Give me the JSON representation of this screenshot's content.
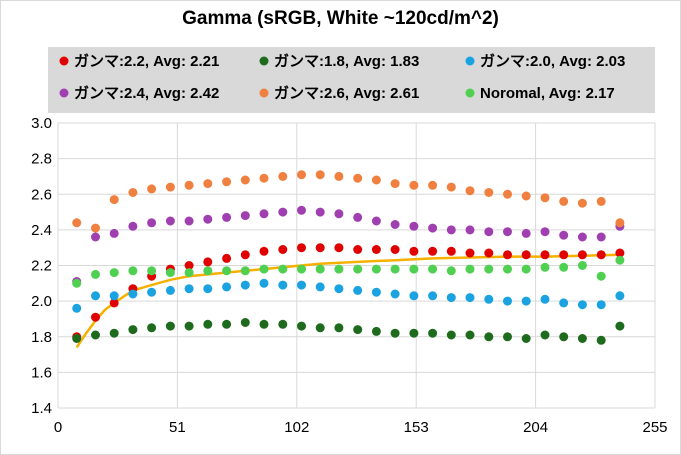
{
  "chart_data": {
    "type": "scatter",
    "title": "Gamma (sRGB, White ~120cd/m^2)",
    "xlabel": "",
    "ylabel": "",
    "xlim": [
      0,
      255
    ],
    "ylim": [
      1.4,
      3.0
    ],
    "x_ticks": [
      "0",
      "51",
      "102",
      "153",
      "204",
      "255"
    ],
    "y_ticks": [
      "1.4",
      "1.6",
      "1.8",
      "2.0",
      "2.2",
      "2.4",
      "2.6",
      "2.8",
      "3.0"
    ],
    "grid": true,
    "legend_placement": "top",
    "x": [
      8,
      16,
      24,
      32,
      40,
      48,
      56,
      64,
      72,
      80,
      88,
      96,
      104,
      112,
      120,
      128,
      136,
      144,
      152,
      160,
      168,
      176,
      184,
      192,
      200,
      208,
      216,
      224,
      232,
      240
    ],
    "series": [
      {
        "name": "ガンマ:2.2, Avg: 2.21",
        "color": "#e00000",
        "marker": "dot",
        "values": [
          1.8,
          1.91,
          1.99,
          2.07,
          2.14,
          2.18,
          2.2,
          2.22,
          2.24,
          2.26,
          2.28,
          2.29,
          2.3,
          2.3,
          2.3,
          2.29,
          2.29,
          2.29,
          2.28,
          2.28,
          2.28,
          2.27,
          2.27,
          2.26,
          2.26,
          2.26,
          2.26,
          2.26,
          2.26,
          2.27
        ]
      },
      {
        "name": "ガンマ:1.8, Avg: 1.83",
        "color": "#1e6b1e",
        "marker": "dot",
        "values": [
          1.79,
          1.81,
          1.82,
          1.84,
          1.85,
          1.86,
          1.86,
          1.87,
          1.87,
          1.88,
          1.87,
          1.87,
          1.86,
          1.85,
          1.85,
          1.84,
          1.83,
          1.82,
          1.82,
          1.82,
          1.81,
          1.81,
          1.8,
          1.8,
          1.79,
          1.81,
          1.8,
          1.79,
          1.78,
          1.86
        ]
      },
      {
        "name": "ガンマ:2.0, Avg: 2.03",
        "color": "#1aa3e0",
        "marker": "dot",
        "values": [
          1.96,
          2.03,
          2.03,
          2.04,
          2.05,
          2.06,
          2.07,
          2.07,
          2.08,
          2.09,
          2.1,
          2.09,
          2.09,
          2.08,
          2.07,
          2.06,
          2.05,
          2.04,
          2.03,
          2.03,
          2.02,
          2.02,
          2.01,
          2.0,
          2.0,
          2.01,
          1.99,
          1.98,
          1.98,
          2.03
        ]
      },
      {
        "name": "ガンマ:2.4, Avg: 2.42",
        "color": "#a040b0",
        "marker": "dot",
        "values": [
          2.11,
          2.36,
          2.38,
          2.42,
          2.44,
          2.45,
          2.45,
          2.46,
          2.47,
          2.48,
          2.49,
          2.5,
          2.51,
          2.5,
          2.49,
          2.47,
          2.45,
          2.43,
          2.42,
          2.41,
          2.4,
          2.4,
          2.39,
          2.39,
          2.38,
          2.39,
          2.37,
          2.36,
          2.36,
          2.42
        ]
      },
      {
        "name": "ガンマ:2.6, Avg: 2.61",
        "color": "#f08040",
        "marker": "dot",
        "values": [
          2.44,
          2.41,
          2.57,
          2.61,
          2.63,
          2.64,
          2.65,
          2.66,
          2.67,
          2.68,
          2.69,
          2.7,
          2.71,
          2.71,
          2.7,
          2.69,
          2.68,
          2.66,
          2.65,
          2.65,
          2.64,
          2.62,
          2.61,
          2.6,
          2.59,
          2.58,
          2.56,
          2.55,
          2.56,
          2.44
        ]
      },
      {
        "name": "Noromal, Avg: 2.17",
        "color": "#50d050",
        "marker": "dot",
        "values": [
          2.1,
          2.15,
          2.16,
          2.17,
          2.17,
          2.16,
          2.16,
          2.17,
          2.17,
          2.17,
          2.18,
          2.18,
          2.18,
          2.18,
          2.18,
          2.18,
          2.18,
          2.18,
          2.18,
          2.18,
          2.17,
          2.18,
          2.18,
          2.18,
          2.18,
          2.19,
          2.19,
          2.2,
          2.14,
          2.23
        ]
      }
    ],
    "reference_line": {
      "color": "#f5b000",
      "x": [
        8,
        12,
        16,
        20,
        24,
        32,
        40,
        48,
        56,
        64,
        80,
        96,
        112,
        128,
        144,
        160,
        176,
        192,
        208,
        224,
        240
      ],
      "values": [
        1.74,
        1.82,
        1.89,
        1.95,
        1.99,
        2.06,
        2.09,
        2.12,
        2.14,
        2.15,
        2.17,
        2.19,
        2.21,
        2.22,
        2.23,
        2.24,
        2.245,
        2.25,
        2.25,
        2.255,
        2.26
      ]
    }
  }
}
